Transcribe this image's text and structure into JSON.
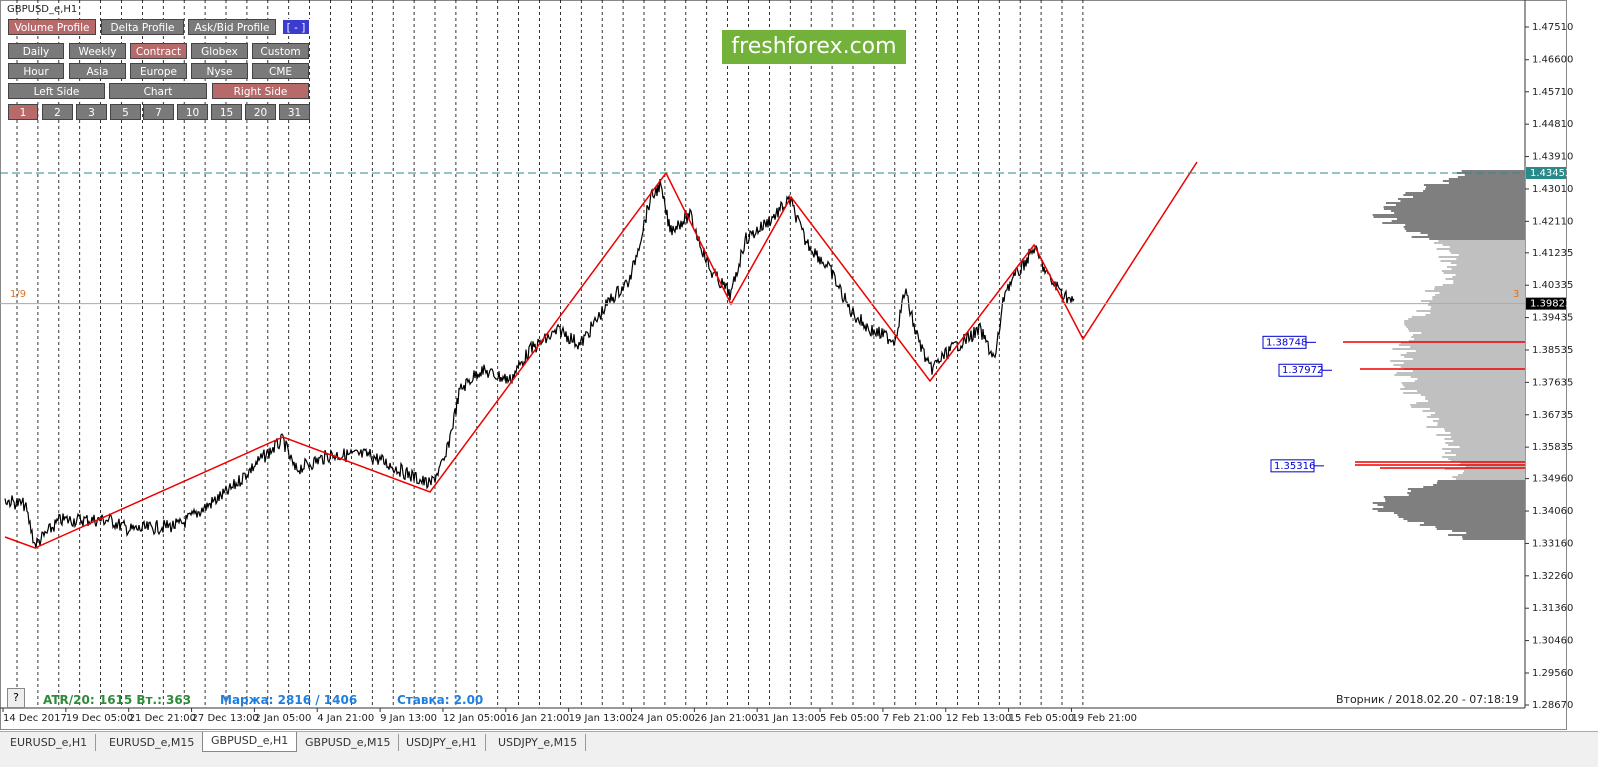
{
  "window_title": "GBPUSD_e,H1",
  "logo": "freshforex.com",
  "buttons": [
    [
      {
        "label": "Volume Profile",
        "active": true
      },
      {
        "label": "Delta Profile",
        "active": false
      },
      {
        "label": "Ask/Bid Profile",
        "active": false
      },
      {
        "label": "[ - ]",
        "active": false
      }
    ],
    [
      {
        "label": "Daily",
        "active": false
      },
      {
        "label": "Weekly",
        "active": false
      },
      {
        "label": "Contract",
        "active": true
      },
      {
        "label": "Globex",
        "active": false
      },
      {
        "label": "Custom",
        "active": false
      }
    ],
    [
      {
        "label": "Hour",
        "active": false
      },
      {
        "label": "Asia",
        "active": false
      },
      {
        "label": "Europe",
        "active": false
      },
      {
        "label": "Nyse",
        "active": false
      },
      {
        "label": "CME",
        "active": false
      }
    ],
    [
      {
        "label": "Left Side",
        "active": false
      },
      {
        "label": "Chart",
        "active": false
      },
      {
        "label": "Right Side",
        "active": true
      }
    ],
    [
      {
        "label": "1",
        "active": true
      },
      {
        "label": "2",
        "active": false
      },
      {
        "label": "3",
        "active": false
      },
      {
        "label": "5",
        "active": false
      },
      {
        "label": "7",
        "active": false
      },
      {
        "label": "10",
        "active": false
      },
      {
        "label": "15",
        "active": false
      },
      {
        "label": "20",
        "active": false
      },
      {
        "label": "31",
        "active": false
      }
    ]
  ],
  "price_axis": {
    "ylim": [
      1.28587,
      1.4826
    ],
    "ticks": [
      {
        "value": 1.4751,
        "label": "1.47510"
      },
      {
        "value": 1.466,
        "label": "1.46600"
      },
      {
        "value": 1.4571,
        "label": "1.45710"
      },
      {
        "value": 1.4481,
        "label": "1.44810"
      },
      {
        "value": 1.4391,
        "label": "1.43910"
      },
      {
        "value": 1.4301,
        "label": "1.43010"
      },
      {
        "value": 1.4211,
        "label": "1.42110"
      },
      {
        "value": 1.41235,
        "label": "1.41235"
      },
      {
        "value": 1.40335,
        "label": "1.40335"
      },
      {
        "value": 1.39435,
        "label": "1.39435"
      },
      {
        "value": 1.38535,
        "label": "1.38535"
      },
      {
        "value": 1.37635,
        "label": "1.37635"
      },
      {
        "value": 1.36735,
        "label": "1.36735"
      },
      {
        "value": 1.35835,
        "label": "1.35835"
      },
      {
        "value": 1.3496,
        "label": "1.34960"
      },
      {
        "value": 1.3406,
        "label": "1.34060"
      },
      {
        "value": 1.3316,
        "label": "1.33160"
      },
      {
        "value": 1.3226,
        "label": "1.32260"
      },
      {
        "value": 1.3136,
        "label": "1.31360"
      },
      {
        "value": 1.3046,
        "label": "1.30460"
      },
      {
        "value": 1.2956,
        "label": "1.29560"
      },
      {
        "value": 1.2867,
        "label": "1.28670"
      }
    ]
  },
  "levels": [
    {
      "value": 1.43453,
      "label": "1.43453",
      "kind": "resistance"
    },
    {
      "value": 1.39823,
      "label": "1.39823",
      "kind": "current"
    },
    {
      "value": 1.38748,
      "label": "1.38748",
      "kind": "profile"
    },
    {
      "value": 1.37972,
      "label": "1.37972",
      "kind": "profile"
    },
    {
      "value": 1.35316,
      "label": "1.35316",
      "kind": "profile"
    }
  ],
  "left_marker": "1/9",
  "right_marker": "3",
  "time_labels": [
    "14 Dec 2017",
    "19 Dec 05:00",
    "21 Dec 21:00",
    "27 Dec 13:00",
    "2 Jan 05:00",
    "4 Jan 21:00",
    "9 Jan 13:00",
    "12 Jan 05:00",
    "16 Jan 21:00",
    "19 Jan 13:00",
    "24 Jan 05:00",
    "26 Jan 21:00",
    "31 Jan 13:00",
    "5 Feb 05:00",
    "7 Feb 21:00",
    "12 Feb 13:00",
    "15 Feb 05:00",
    "19 Feb 21:00"
  ],
  "info": {
    "atr": "ATR/20: 1615  Вт.: 363",
    "margin": "Маржа: 2816 / 1406",
    "rate": "Ставка: 2.00",
    "clock": "Вторник  /  2018.02.20  -  07:18:19",
    "help": "?"
  },
  "tabs": [
    {
      "label": "EURUSD_e,H1",
      "active": false
    },
    {
      "label": "EURUSD_e,M15",
      "active": false
    },
    {
      "label": "GBPUSD_e,H1",
      "active": true
    },
    {
      "label": "GBPUSD_e,M15",
      "active": false
    },
    {
      "label": "USDJPY_e,H1",
      "active": false
    },
    {
      "label": "USDJPY_e,M15",
      "active": false
    }
  ]
}
